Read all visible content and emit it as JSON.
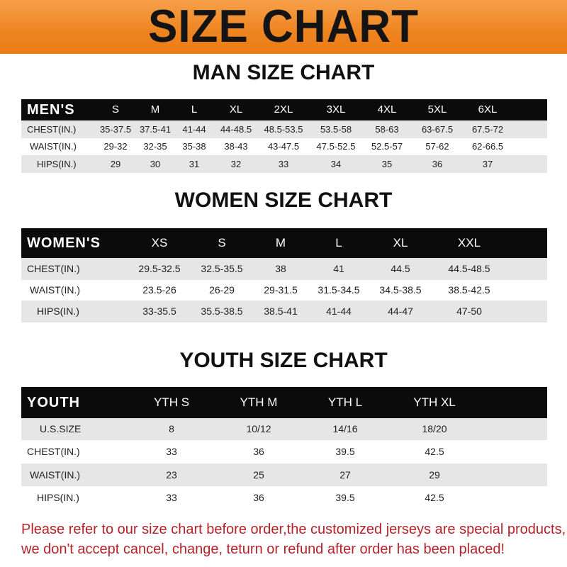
{
  "banner": {
    "title": "SIZE CHART",
    "color": "#ee8420"
  },
  "men": {
    "title": "MAN SIZE CHART",
    "header": [
      "MEN'S",
      "S",
      "M",
      "L",
      "XL",
      "2XL",
      "3XL",
      "4XL",
      "5XL",
      "6XL"
    ],
    "rows": [
      [
        "CHEST(IN.)",
        "35-37.5",
        "37.5-41",
        "41-44",
        "44-48.5",
        "48.5-53.5",
        "53.5-58",
        "58-63",
        "63-67.5",
        "67.5-72"
      ],
      [
        "WAIST(IN.)",
        "29-32",
        "32-35",
        "35-38",
        "38-43",
        "43-47.5",
        "47.5-52.5",
        "52.5-57",
        "57-62",
        "62-66.5"
      ],
      [
        "HIPS(IN.)",
        "29",
        "30",
        "31",
        "32",
        "33",
        "34",
        "35",
        "36",
        "37"
      ]
    ]
  },
  "women": {
    "title": "WOMEN SIZE CHART",
    "header": [
      "WOMEN'S",
      "XS",
      "S",
      "M",
      "L",
      "XL",
      "XXL"
    ],
    "rows": [
      [
        "CHEST(IN.)",
        "29.5-32.5",
        "32.5-35.5",
        "38",
        "41",
        "44.5",
        "44.5-48.5"
      ],
      [
        "WAIST(IN.)",
        "23.5-26",
        "26-29",
        "29-31.5",
        "31.5-34.5",
        "34.5-38.5",
        "38.5-42.5"
      ],
      [
        "HIPS(IN.)",
        "33-35.5",
        "35.5-38.5",
        "38.5-41",
        "41-44",
        "44-47",
        "47-50"
      ]
    ]
  },
  "youth": {
    "title": "YOUTH SIZE CHART",
    "header": [
      "YOUTH",
      "YTH S",
      "YTH M",
      "YTH L",
      "YTH XL"
    ],
    "rows": [
      [
        "U.S.SIZE",
        "8",
        "10/12",
        "14/16",
        "18/20"
      ],
      [
        "CHEST(IN.)",
        "33",
        "36",
        "39.5",
        "42.5"
      ],
      [
        "WAIST(IN.)",
        "23",
        "25",
        "27",
        "29"
      ],
      [
        "HIPS(IN.)",
        "33",
        "36",
        "39.5",
        "42.5"
      ]
    ]
  },
  "note": {
    "line1": "Please refer to our size chart before order,the customized jerseys are special products,",
    "line2": "we don't accept cancel, change, teturn or refund after order has been placed!",
    "color": "#b4232a"
  }
}
